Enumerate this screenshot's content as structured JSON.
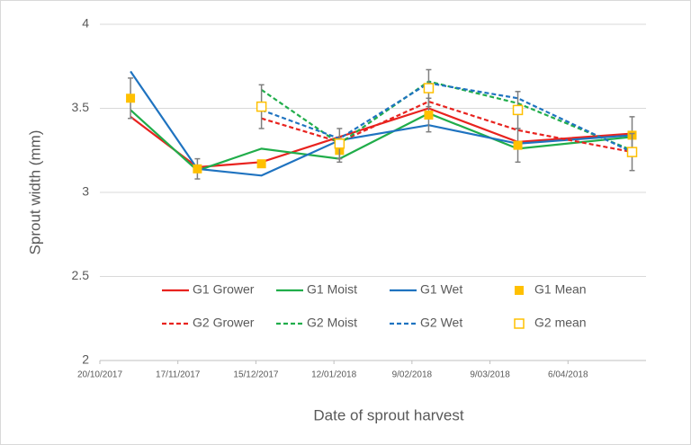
{
  "chart_data": {
    "type": "line",
    "x_label": "Date of sprout harvest",
    "y_label": "Sprout width (mm)",
    "x": [
      "2017-10-31",
      "2017-11-24",
      "2017-12-17",
      "2018-01-14",
      "2018-02-15",
      "2018-03-19",
      "2018-04-29"
    ],
    "xlim": [
      "2017-10-20",
      "2018-05-04"
    ],
    "xticks": [
      {
        "value": "2017-10-20",
        "label": "20/10/2017"
      },
      {
        "value": "2017-11-17",
        "label": "17/11/2017"
      },
      {
        "value": "2017-12-15",
        "label": "15/12/2017"
      },
      {
        "value": "2018-01-12",
        "label": "12/01/2018"
      },
      {
        "value": "2018-02-09",
        "label": "9/02/2018"
      },
      {
        "value": "2018-03-09",
        "label": "9/03/2018"
      },
      {
        "value": "2018-04-06",
        "label": "6/04/2018"
      }
    ],
    "ylim": [
      2,
      4
    ],
    "yticks": [
      2,
      {
        "value": 2.5,
        "label": "2.5"
      },
      3,
      {
        "value": 3.5,
        "label": "3.5"
      },
      4
    ],
    "grid": true,
    "series": [
      {
        "name": "G1 Grower",
        "color": "#e8231f",
        "linestyle": "solid",
        "values": [
          3.45,
          3.15,
          3.18,
          3.33,
          3.5,
          3.3,
          3.35
        ]
      },
      {
        "name": "G1 Moist",
        "color": "#20ad4a",
        "linestyle": "solid",
        "values": [
          3.49,
          3.13,
          3.26,
          3.2,
          3.47,
          3.26,
          3.33
        ]
      },
      {
        "name": "G1 Wet",
        "color": "#1f73c0",
        "linestyle": "solid",
        "values": [
          3.72,
          3.14,
          3.1,
          3.31,
          3.4,
          3.29,
          3.34
        ]
      },
      {
        "name": "G1 Mean",
        "color": "#ffc000",
        "marker": "filled-square",
        "values": [
          3.56,
          3.14,
          3.17,
          3.25,
          3.46,
          3.28,
          3.34
        ],
        "errors": [
          0.12,
          0.06,
          0.02,
          0.07,
          0.1,
          0.1,
          0.11
        ]
      },
      {
        "name": "G2 Grower",
        "color": "#e8231f",
        "linestyle": "dashed",
        "values": [
          null,
          null,
          3.44,
          3.3,
          3.54,
          3.37,
          3.24
        ]
      },
      {
        "name": "G2 Moist",
        "color": "#20ad4a",
        "linestyle": "dashed",
        "values": [
          null,
          null,
          3.61,
          3.29,
          3.66,
          3.53,
          3.25
        ]
      },
      {
        "name": "G2 Wet",
        "color": "#1f73c0",
        "linestyle": "dashed",
        "values": [
          null,
          null,
          3.49,
          3.32,
          3.65,
          3.56,
          3.24
        ]
      },
      {
        "name": "G2 mean",
        "color": "#ffc000",
        "marker": "open-square",
        "values": [
          null,
          null,
          3.51,
          3.29,
          3.62,
          3.49,
          3.24
        ],
        "errors": [
          null,
          null,
          0.13,
          0.09,
          0.11,
          0.11,
          0.11
        ]
      }
    ]
  }
}
